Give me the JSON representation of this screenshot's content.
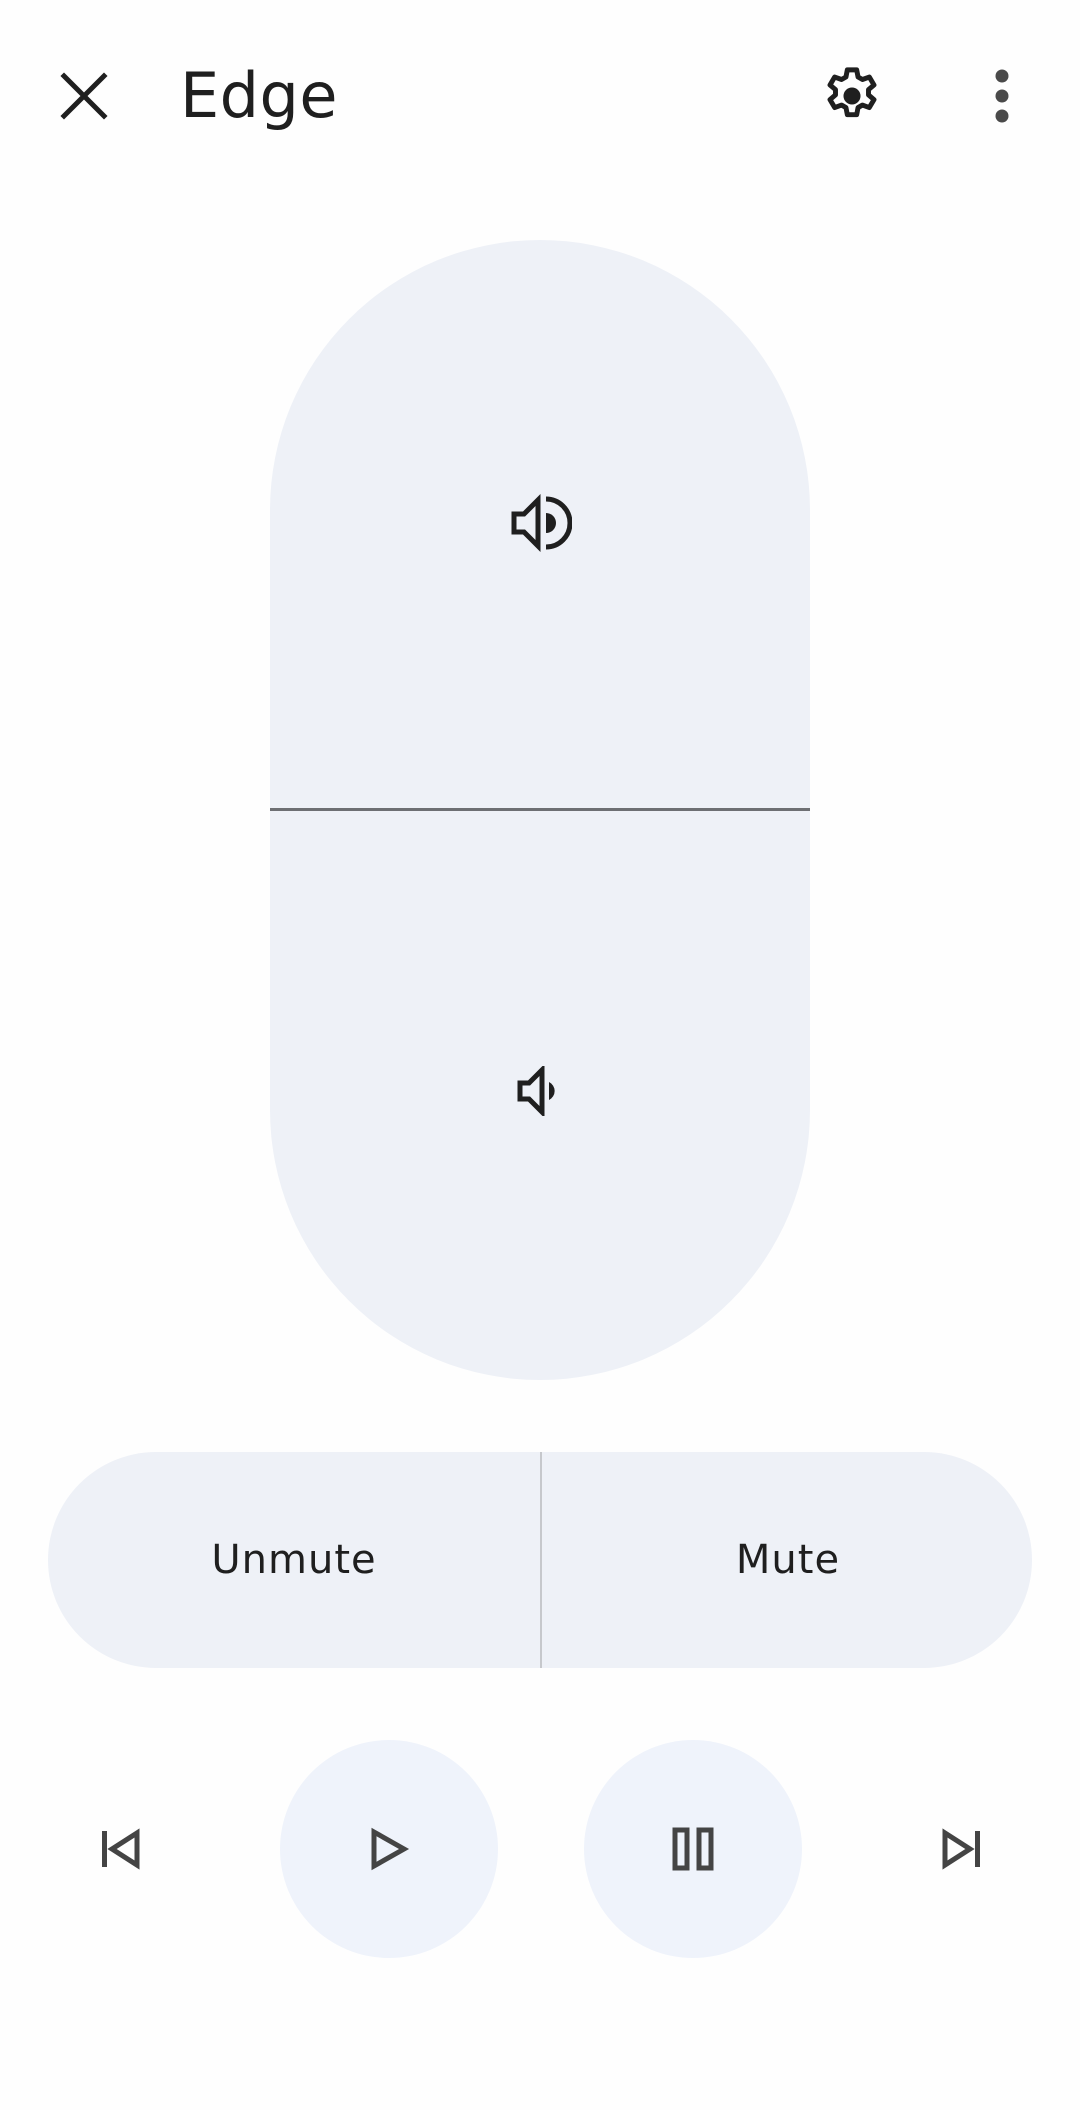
{
  "header": {
    "title": "Edge",
    "close_icon": "close-icon",
    "settings_icon": "gear-icon",
    "more_icon": "more-vert-icon"
  },
  "volume": {
    "up_icon": "volume-up-icon",
    "down_icon": "volume-down-icon"
  },
  "mute": {
    "unmute_label": "Unmute",
    "mute_label": "Mute"
  },
  "media": {
    "previous_icon": "skip-previous-icon",
    "play_icon": "play-icon",
    "pause_icon": "pause-icon",
    "next_icon": "skip-next-icon"
  },
  "colors": {
    "surface": "#eef1f7",
    "icon": "#1f1f1f",
    "divider": "#6d6f73",
    "background": "#fefefe"
  }
}
